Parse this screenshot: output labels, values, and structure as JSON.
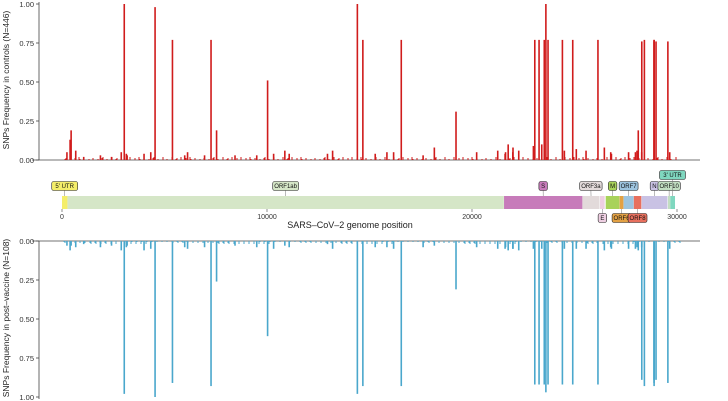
{
  "chart_data": [
    {
      "panel": "top",
      "type": "bar",
      "ylabel": "SNPs Frequency in controls (N=446)",
      "yticks": [
        "0.00",
        "0.25",
        "0.50",
        "0.75",
        "1.00"
      ],
      "ylim": [
        0,
        1
      ],
      "xlim": [
        0,
        30000
      ],
      "grid": false,
      "color": "#d01c1c",
      "x": [
        241,
        395,
        445,
        670,
        1059,
        1875,
        2416,
        2891,
        3037,
        3139,
        3177,
        4002,
        4330,
        4540,
        5388,
        5986,
        6125,
        6954,
        7270,
        7540,
        8440,
        9500,
        10029,
        10323,
        10870,
        11083,
        12950,
        13200,
        14408,
        14676,
        15279,
        15850,
        16176,
        16550,
        17615,
        18163,
        19220,
        20227,
        21255,
        21614,
        21637,
        21765,
        21990,
        22000,
        22280,
        22995,
        23063,
        23271,
        23403,
        23525,
        23604,
        23709,
        24410,
        24506,
        24914,
        25088,
        25563,
        26144,
        26456,
        26767,
        26801,
        27638,
        27972,
        28048,
        28111,
        28280,
        28281,
        28282,
        28409,
        28881,
        28882,
        28883,
        28977,
        29555,
        29645
      ],
      "values": [
        0.05,
        0.13,
        0.19,
        0.06,
        0.02,
        0.03,
        0.02,
        0.05,
        1.0,
        0.04,
        0.03,
        0.04,
        0.05,
        0.98,
        0.77,
        0.03,
        0.05,
        0.03,
        0.77,
        0.19,
        0.03,
        0.03,
        0.51,
        0.04,
        0.06,
        0.04,
        0.04,
        0.06,
        1.0,
        0.77,
        0.04,
        0.05,
        0.05,
        0.77,
        0.03,
        0.08,
        0.31,
        0.05,
        0.06,
        0.04,
        0.05,
        0.1,
        0.05,
        0.08,
        0.06,
        0.09,
        0.77,
        0.77,
        0.1,
        0.77,
        1.0,
        0.77,
        0.77,
        0.06,
        0.77,
        0.07,
        0.06,
        0.77,
        0.08,
        0.05,
        0.04,
        0.05,
        0.05,
        0.06,
        0.19,
        0.05,
        0.05,
        0.76,
        0.77,
        0.76,
        0.77,
        0.77,
        0.76,
        0.76,
        0.05
      ]
    },
    {
      "panel": "bottom",
      "type": "bar",
      "orientation": "downward",
      "ylabel": "SNPs Frequency in post–vaccine (N=108)",
      "yticks": [
        "0.00",
        "0.25",
        "0.50",
        "0.75",
        "1.00"
      ],
      "ylim": [
        0,
        1
      ],
      "xlim": [
        0,
        30000
      ],
      "grid": false,
      "color": "#4aa7cc",
      "x": [
        241,
        395,
        445,
        670,
        1059,
        1875,
        2416,
        2891,
        3037,
        3139,
        3177,
        4002,
        4330,
        4540,
        5388,
        5986,
        6125,
        6954,
        7270,
        7540,
        8440,
        9500,
        10029,
        10323,
        10870,
        11083,
        12950,
        13200,
        14408,
        14676,
        15279,
        15850,
        16176,
        16550,
        17615,
        18163,
        19220,
        20227,
        21255,
        21614,
        21637,
        21765,
        21990,
        22000,
        22280,
        22995,
        23063,
        23271,
        23403,
        23525,
        23604,
        23709,
        24410,
        24506,
        24914,
        25088,
        25563,
        26144,
        26456,
        26767,
        26801,
        27638,
        27972,
        28048,
        28111,
        28280,
        28281,
        28282,
        28409,
        28881,
        28882,
        28883,
        28977,
        29555,
        29645
      ],
      "values": [
        0.03,
        0.06,
        0.03,
        0.04,
        0.02,
        0.04,
        0.03,
        0.06,
        0.98,
        0.04,
        0.03,
        0.06,
        0.05,
        1.0,
        0.91,
        0.04,
        0.05,
        0.04,
        0.93,
        0.26,
        0.03,
        0.04,
        0.61,
        0.05,
        0.03,
        0.04,
        0.02,
        0.05,
        0.98,
        0.93,
        0.04,
        0.04,
        0.05,
        0.93,
        0.04,
        0.03,
        0.31,
        0.04,
        0.05,
        0.05,
        0.04,
        0.06,
        0.05,
        0.05,
        0.06,
        0.05,
        0.92,
        0.92,
        0.05,
        0.92,
        0.97,
        0.92,
        0.92,
        0.05,
        0.92,
        0.05,
        0.05,
        0.92,
        0.06,
        0.04,
        0.05,
        0.05,
        0.05,
        0.04,
        0.06,
        0.04,
        0.04,
        0.89,
        0.93,
        0.89,
        0.91,
        0.93,
        0.89,
        0.91,
        0.05
      ]
    },
    {
      "panel": "middle",
      "type": "genome-map",
      "xlabel": "SARS–CoV–2 genome position",
      "xticks": [
        0,
        10000,
        20000,
        30000
      ],
      "xlim": [
        0,
        30000
      ],
      "segments": [
        {
          "name": "5' UTR",
          "start": 0,
          "end": 265,
          "color": "#f4ee6a"
        },
        {
          "name": "ORF1ab",
          "start": 266,
          "end": 21555,
          "color": "#d5e6c7"
        },
        {
          "name": "S",
          "start": 21563,
          "end": 25384,
          "color": "#c77bba"
        },
        {
          "name": "ORF3a",
          "start": 25393,
          "end": 26220,
          "color": "#e2dada"
        },
        {
          "name": "E",
          "start": 26245,
          "end": 26472,
          "color": "#eecfe2"
        },
        {
          "name": "M",
          "start": 26523,
          "end": 27191,
          "color": "#a8d25a"
        },
        {
          "name": "ORF6",
          "start": 27202,
          "end": 27387,
          "color": "#e3a144"
        },
        {
          "name": "ORF7",
          "start": 27394,
          "end": 27887,
          "color": "#9dc4df"
        },
        {
          "name": "ORF8",
          "start": 27894,
          "end": 28259,
          "color": "#e8705e"
        },
        {
          "name": "N",
          "start": 28274,
          "end": 29533,
          "color": "#c9c2e4"
        },
        {
          "name": "ORF10",
          "start": 29558,
          "end": 29674,
          "color": "#c2dec2"
        },
        {
          "name": "3' UTR",
          "start": 29675,
          "end": 29903,
          "color": "#7fd7bf"
        }
      ]
    }
  ]
}
